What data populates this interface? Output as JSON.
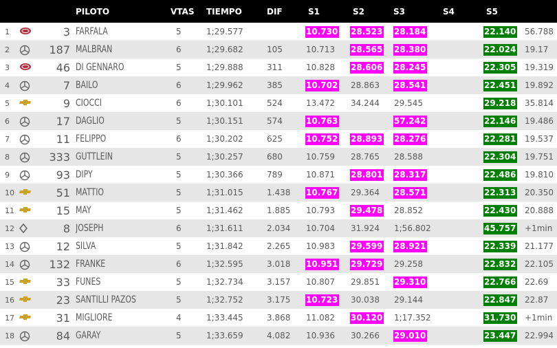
{
  "headers": {
    "piloto": "PILOTO",
    "vtas": "VTAS",
    "tiempo": "TIEMPO",
    "dif": "DIF",
    "s1": "S1",
    "s2": "S2",
    "s3": "S3",
    "s4": "S4",
    "s5": "S5"
  },
  "colors": {
    "best_sector": "#ff00ff",
    "personal_best": "#008000",
    "header_bg": "#000000",
    "stripe": "#e6e6e6"
  },
  "rows": [
    {
      "pos": "1",
      "brand": "toyota-logo",
      "num": "3",
      "name": "FARFALA",
      "laps": "5",
      "time": "1;29.577",
      "dif": "",
      "s1": {
        "v": "10.730",
        "hl": "pk"
      },
      "s2": {
        "v": "28.523",
        "hl": "pk"
      },
      "s3": {
        "v": "28.184",
        "hl": "pk"
      },
      "s4": "",
      "s5": {
        "v": "22.140",
        "hl": "gr"
      },
      "last": "56.788"
    },
    {
      "pos": "2",
      "brand": "mercedes-logo",
      "num": "187",
      "name": "MALBRAN",
      "laps": "6",
      "time": "1;29.682",
      "dif": "105",
      "s1": {
        "v": "10.713",
        "hl": ""
      },
      "s2": {
        "v": "28.565",
        "hl": "pk"
      },
      "s3": {
        "v": "28.380",
        "hl": "pk"
      },
      "s4": "",
      "s5": {
        "v": "22.024",
        "hl": "gr"
      },
      "last": "19.17"
    },
    {
      "pos": "3",
      "brand": "toyota-logo",
      "num": "46",
      "name": "DI GENNARO",
      "laps": "5",
      "time": "1;29.888",
      "dif": "311",
      "s1": {
        "v": "10.828",
        "hl": ""
      },
      "s2": {
        "v": "28.606",
        "hl": "pk"
      },
      "s3": {
        "v": "28.245",
        "hl": "pk"
      },
      "s4": "",
      "s5": {
        "v": "22.305",
        "hl": "gr"
      },
      "last": "19.319"
    },
    {
      "pos": "4",
      "brand": "mercedes-logo",
      "num": "7",
      "name": "BAILO",
      "laps": "6",
      "time": "1;29.962",
      "dif": "385",
      "s1": {
        "v": "10.702",
        "hl": "pk"
      },
      "s2": {
        "v": "28.863",
        "hl": ""
      },
      "s3": {
        "v": "28.541",
        "hl": "pk"
      },
      "s4": "",
      "s5": {
        "v": "22.451",
        "hl": "gr"
      },
      "last": "19.892"
    },
    {
      "pos": "5",
      "brand": "chevrolet-logo",
      "num": "9",
      "name": "CIOCCI",
      "laps": "6",
      "time": "1;30.101",
      "dif": "524",
      "s1": {
        "v": "13.472",
        "hl": ""
      },
      "s2": {
        "v": "34.244",
        "hl": ""
      },
      "s3": {
        "v": "29.545",
        "hl": ""
      },
      "s4": "",
      "s5": {
        "v": "29.218",
        "hl": "gr"
      },
      "last": "35.814"
    },
    {
      "pos": "6",
      "brand": "mercedes-logo",
      "num": "17",
      "name": "DAGLIO",
      "laps": "5",
      "time": "1;30.151",
      "dif": "574",
      "s1": {
        "v": "10.763",
        "hl": "pk"
      },
      "s2": {
        "v": "",
        "hl": ""
      },
      "s3": {
        "v": "57.242",
        "hl": "pk"
      },
      "s4": "",
      "s5": {
        "v": "22.146",
        "hl": "gr"
      },
      "last": "19.486"
    },
    {
      "pos": "7",
      "brand": "mercedes-logo",
      "num": "11",
      "name": "FELIPPO",
      "laps": "6",
      "time": "1;30.202",
      "dif": "625",
      "s1": {
        "v": "10.752",
        "hl": "pk"
      },
      "s2": {
        "v": "28.893",
        "hl": "pk"
      },
      "s3": {
        "v": "28.276",
        "hl": "pk"
      },
      "s4": "",
      "s5": {
        "v": "22.281",
        "hl": "gr"
      },
      "last": "19.537"
    },
    {
      "pos": "8",
      "brand": "mercedes-logo",
      "num": "333",
      "name": "GUTTLEIN",
      "laps": "5",
      "time": "1;30.257",
      "dif": "680",
      "s1": {
        "v": "10.759",
        "hl": ""
      },
      "s2": {
        "v": "28.765",
        "hl": ""
      },
      "s3": {
        "v": "28.588",
        "hl": ""
      },
      "s4": "",
      "s5": {
        "v": "22.304",
        "hl": "gr"
      },
      "last": "19.751"
    },
    {
      "pos": "9",
      "brand": "mercedes-logo",
      "num": "93",
      "name": "DIPY",
      "laps": "5",
      "time": "1;30.366",
      "dif": "789",
      "s1": {
        "v": "10.871",
        "hl": ""
      },
      "s2": {
        "v": "28.801",
        "hl": "pk"
      },
      "s3": {
        "v": "28.317",
        "hl": "pk"
      },
      "s4": "",
      "s5": {
        "v": "22.486",
        "hl": "gr"
      },
      "last": "19.810"
    },
    {
      "pos": "10",
      "brand": "chevrolet-logo",
      "num": "51",
      "name": "MATTIO",
      "laps": "5",
      "time": "1;31.015",
      "dif": "1.438",
      "s1": {
        "v": "10.767",
        "hl": "pk"
      },
      "s2": {
        "v": "29.364",
        "hl": ""
      },
      "s3": {
        "v": "28.571",
        "hl": "pk"
      },
      "s4": "",
      "s5": {
        "v": "22.313",
        "hl": "gr"
      },
      "last": "20.350"
    },
    {
      "pos": "11",
      "brand": "chevrolet-logo",
      "num": "15",
      "name": "MAY",
      "laps": "5",
      "time": "1;31.462",
      "dif": "1.885",
      "s1": {
        "v": "10.793",
        "hl": ""
      },
      "s2": {
        "v": "29.478",
        "hl": "pk"
      },
      "s3": {
        "v": "28.852",
        "hl": ""
      },
      "s4": "",
      "s5": {
        "v": "22.430",
        "hl": "gr"
      },
      "last": "20.888"
    },
    {
      "pos": "12",
      "brand": "renault-logo",
      "num": "8",
      "name": "JOSEPH",
      "laps": "6",
      "time": "1;31.611",
      "dif": "2.034",
      "s1": {
        "v": "10.704",
        "hl": ""
      },
      "s2": {
        "v": "31.924",
        "hl": ""
      },
      "s3": {
        "v": "1;56.802",
        "hl": ""
      },
      "s4": "",
      "s5": {
        "v": "45.757",
        "hl": "gr"
      },
      "last": "+1min"
    },
    {
      "pos": "13",
      "brand": "mercedes-logo",
      "num": "12",
      "name": "SILVA",
      "laps": "5",
      "time": "1;31.842",
      "dif": "2.265",
      "s1": {
        "v": "10.983",
        "hl": ""
      },
      "s2": {
        "v": "29.599",
        "hl": "pk"
      },
      "s3": {
        "v": "28.921",
        "hl": "pk"
      },
      "s4": "",
      "s5": {
        "v": "22.339",
        "hl": "gr"
      },
      "last": "21.177"
    },
    {
      "pos": "14",
      "brand": "mercedes-logo",
      "num": "132",
      "name": "FRANKE",
      "laps": "6",
      "time": "1;32.595",
      "dif": "3.018",
      "s1": {
        "v": "10.951",
        "hl": "pk"
      },
      "s2": {
        "v": "29.729",
        "hl": "pk"
      },
      "s3": {
        "v": "29.258",
        "hl": ""
      },
      "s4": "",
      "s5": {
        "v": "22.832",
        "hl": "gr"
      },
      "last": "22.105"
    },
    {
      "pos": "15",
      "brand": "chevrolet-logo",
      "num": "33",
      "name": "FUNES",
      "laps": "5",
      "time": "1;32.734",
      "dif": "3.157",
      "s1": {
        "v": "10.807",
        "hl": ""
      },
      "s2": {
        "v": "29.851",
        "hl": ""
      },
      "s3": {
        "v": "29.310",
        "hl": "pk"
      },
      "s4": "",
      "s5": {
        "v": "22.766",
        "hl": "gr"
      },
      "last": "22.69"
    },
    {
      "pos": "16",
      "brand": "chevrolet-logo",
      "num": "23",
      "name": "SANTILLI PAZOS",
      "laps": "5",
      "time": "1;32.752",
      "dif": "3.175",
      "s1": {
        "v": "10.723",
        "hl": "pk"
      },
      "s2": {
        "v": "30.038",
        "hl": ""
      },
      "s3": {
        "v": "29.144",
        "hl": ""
      },
      "s4": "",
      "s5": {
        "v": "22.847",
        "hl": "gr"
      },
      "last": "22.87"
    },
    {
      "pos": "17",
      "brand": "chevrolet-logo",
      "num": "31",
      "name": "MIGLIORE",
      "laps": "4",
      "time": "1;33.445",
      "dif": "3.868",
      "s1": {
        "v": "11.082",
        "hl": ""
      },
      "s2": {
        "v": "30.120",
        "hl": "pk"
      },
      "s3": {
        "v": "1;17.352",
        "hl": ""
      },
      "s4": "",
      "s5": {
        "v": "31.730",
        "hl": "gr"
      },
      "last": "+1min"
    },
    {
      "pos": "18",
      "brand": "mercedes-logo",
      "num": "84",
      "name": "GARAY",
      "laps": "5",
      "time": "1;33.659",
      "dif": "4.082",
      "s1": {
        "v": "10.936",
        "hl": ""
      },
      "s2": {
        "v": "30.266",
        "hl": ""
      },
      "s3": {
        "v": "29.010",
        "hl": "pk"
      },
      "s4": "",
      "s5": {
        "v": "23.447",
        "hl": "gr"
      },
      "last": "22.994"
    }
  ]
}
